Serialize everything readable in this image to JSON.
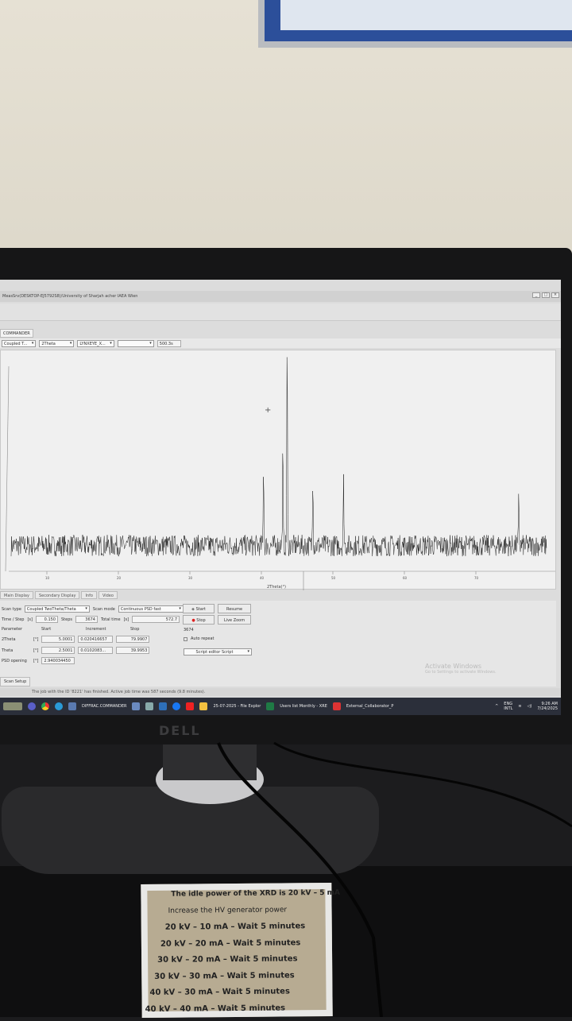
{
  "window": {
    "title": "MeasSrv(DESKTOP-EJ5792S8)/University of Sharjah acher IAEA Wien",
    "tab": "COMMANDER",
    "controls": [
      "_",
      "□",
      "×"
    ]
  },
  "toolbar": {
    "scan_select": "Coupled T...",
    "axis_select": "2Theta",
    "detector_select": "LYNXEYE_X...",
    "empty_select": "",
    "field_value": "500.3s"
  },
  "chart_data": {
    "type": "line",
    "xlabel": "2Theta(°)",
    "ylabel": "",
    "x_ticks": [
      10,
      20,
      30,
      40,
      50,
      60,
      70
    ],
    "xlim": [
      4,
      80
    ],
    "ylim": [
      0,
      100
    ],
    "description_peaks": [
      {
        "x": 40.3,
        "y": 38
      },
      {
        "x": 43.0,
        "y": 43
      },
      {
        "x": 43.6,
        "y": 95
      },
      {
        "x": 47.2,
        "y": 33
      },
      {
        "x": 51.5,
        "y": 30
      },
      {
        "x": 76.0,
        "y": 22
      }
    ],
    "baseline": 12,
    "grid": false
  },
  "display_tabs": [
    "Main Display",
    "Secondary Display",
    "Info",
    "Video"
  ],
  "scan": {
    "scan_type_label": "Scan type",
    "scan_type": "Coupled TwoTheta/Theta",
    "scan_mode_label": "Scan mode",
    "scan_mode": "Continuous PSD fast",
    "time_step_label": "Time / Step",
    "time_step_unit": "[s]",
    "time_step": "0.150",
    "steps_label": "Steps",
    "steps": "3674",
    "total_time_label": "Total time",
    "total_time_unit": "[s]",
    "total_time": "572.7",
    "param_header": "Parameter",
    "start_header": "Start",
    "increment_header": "Increment",
    "stop_header": "Stop",
    "rows": [
      {
        "name": "2Theta",
        "unit": "[°]",
        "start": "5.0001",
        "increment": "0.020416657",
        "stop": "79.9907"
      },
      {
        "name": "Theta",
        "unit": "[°]",
        "start": "2.5001",
        "increment": "0.0102083...",
        "stop": "39.9953"
      }
    ],
    "psd_label": "PSD opening",
    "psd_unit": "[°]",
    "psd_value": "2.940034450",
    "start_btn": "Start",
    "resume_btn": "Resume",
    "stop_btn": "Stop",
    "live_zoom_btn": "Live Zoom",
    "step_count": "3674",
    "auto_repeat": "Auto repeat",
    "script": "Script editor Script",
    "setup_tab": "Scan Setup"
  },
  "status": "The job with the ID '8221' has finished. Active job time was 587 seconds (9.8 minutes).",
  "watermark": {
    "title": "Activate Windows",
    "sub": "Go to Settings to activate Windows."
  },
  "taskbar": {
    "app": "DIFFRAC.COMMANDER",
    "explorer": "25-07-2025 - File Explor",
    "excel": "Users list Monthly - XRE",
    "pdf": "External_Collaborator_P",
    "lang1": "ENG",
    "lang2": "INTL",
    "time": "9:26 AM",
    "date": "7/24/2025"
  },
  "monitor_brand": "DELL",
  "sign": {
    "lines": [
      "The idle power of the XRD is 20 kV – 5 mA",
      "Increase the HV generator power",
      "20 kV – 10 mA – Wait 5 minutes",
      "20 kV – 20 mA – Wait 5 minutes",
      "30 kV – 20 mA – Wait 5 minutes",
      "30 kV – 30 mA – Wait 5 minutes",
      "40 kV – 30 mA – Wait 5 minutes",
      "40 kV – 40 mA – Wait 5 minutes"
    ]
  }
}
